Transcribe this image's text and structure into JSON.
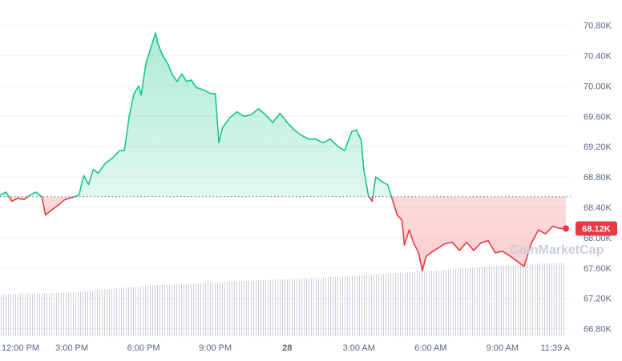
{
  "chart_data": {
    "type": "line",
    "yticks": [
      "70.80K",
      "70.40K",
      "70.00K",
      "69.60K",
      "69.20K",
      "68.80K",
      "68.40K",
      "68.00K",
      "67.60K",
      "67.20K",
      "66.80K"
    ],
    "ytick_values": [
      70800,
      70400,
      70000,
      69600,
      69200,
      68800,
      68400,
      68000,
      67600,
      67200,
      66800
    ],
    "xticks": [
      "12:00 PM",
      "3:00 PM",
      "6:00 PM",
      "9:00 PM",
      "28",
      "3:00 AM",
      "6:00 AM",
      "9:00 AM",
      "11:39 A"
    ],
    "xtick_hours": [
      0,
      3,
      6,
      9,
      12,
      15,
      18,
      21,
      23.65
    ],
    "ylim": [
      66700,
      71050
    ],
    "baseline": 68540,
    "current_price_label": "68.12K",
    "current_price": 68120,
    "watermark": "CoinMarketCap",
    "colors": {
      "up": "#16c784",
      "down": "#ea3943",
      "axis": "#58667e",
      "volume": "#b9bec8"
    },
    "series": [
      {
        "values": [
          [
            0,
            68560
          ],
          [
            0.25,
            68600
          ],
          [
            0.5,
            68480
          ],
          [
            0.75,
            68520
          ],
          [
            1,
            68500
          ],
          [
            1.25,
            68560
          ],
          [
            1.5,
            68600
          ],
          [
            1.75,
            68540
          ],
          [
            1.9,
            68300
          ],
          [
            2.1,
            68350
          ],
          [
            2.4,
            68420
          ],
          [
            2.7,
            68500
          ],
          [
            3.0,
            68530
          ],
          [
            3.3,
            68560
          ],
          [
            3.5,
            68820
          ],
          [
            3.7,
            68700
          ],
          [
            3.9,
            68900
          ],
          [
            4.1,
            68850
          ],
          [
            4.4,
            68980
          ],
          [
            4.7,
            69050
          ],
          [
            5.0,
            69150
          ],
          [
            5.2,
            69150
          ],
          [
            5.4,
            69600
          ],
          [
            5.6,
            69900
          ],
          [
            5.8,
            70000
          ],
          [
            5.9,
            69880
          ],
          [
            6.1,
            70300
          ],
          [
            6.3,
            70500
          ],
          [
            6.5,
            70700
          ],
          [
            6.6,
            70560
          ],
          [
            6.8,
            70400
          ],
          [
            7.0,
            70300
          ],
          [
            7.2,
            70150
          ],
          [
            7.4,
            70060
          ],
          [
            7.6,
            70160
          ],
          [
            7.8,
            70060
          ],
          [
            8.0,
            70080
          ],
          [
            8.2,
            69980
          ],
          [
            8.5,
            69950
          ],
          [
            8.8,
            69900
          ],
          [
            9.0,
            69900
          ],
          [
            9.15,
            69250
          ],
          [
            9.3,
            69450
          ],
          [
            9.6,
            69580
          ],
          [
            9.9,
            69660
          ],
          [
            10.2,
            69600
          ],
          [
            10.5,
            69620
          ],
          [
            10.8,
            69700
          ],
          [
            11.1,
            69620
          ],
          [
            11.4,
            69520
          ],
          [
            11.7,
            69640
          ],
          [
            12.0,
            69520
          ],
          [
            12.3,
            69420
          ],
          [
            12.6,
            69350
          ],
          [
            12.9,
            69300
          ],
          [
            13.2,
            69300
          ],
          [
            13.5,
            69250
          ],
          [
            13.8,
            69300
          ],
          [
            14.1,
            69210
          ],
          [
            14.4,
            69150
          ],
          [
            14.7,
            69400
          ],
          [
            14.9,
            69420
          ],
          [
            15.1,
            69280
          ],
          [
            15.2,
            68900
          ],
          [
            15.4,
            68550
          ],
          [
            15.55,
            68480
          ],
          [
            15.7,
            68800
          ],
          [
            16.0,
            68730
          ],
          [
            16.2,
            68700
          ],
          [
            16.4,
            68500
          ],
          [
            16.6,
            68300
          ],
          [
            16.8,
            68230
          ],
          [
            16.9,
            67900
          ],
          [
            17.1,
            68100
          ],
          [
            17.3,
            67920
          ],
          [
            17.5,
            67800
          ],
          [
            17.65,
            67560
          ],
          [
            17.8,
            67750
          ],
          [
            18.0,
            67800
          ],
          [
            18.3,
            67860
          ],
          [
            18.6,
            67920
          ],
          [
            18.9,
            67940
          ],
          [
            19.2,
            67830
          ],
          [
            19.5,
            67940
          ],
          [
            19.8,
            67830
          ],
          [
            20.1,
            67930
          ],
          [
            20.4,
            67960
          ],
          [
            20.7,
            67800
          ],
          [
            21.0,
            67820
          ],
          [
            21.3,
            67760
          ],
          [
            21.6,
            67690
          ],
          [
            21.9,
            67620
          ],
          [
            22.2,
            67920
          ],
          [
            22.5,
            68100
          ],
          [
            22.8,
            68050
          ],
          [
            23.1,
            68150
          ],
          [
            23.4,
            68120
          ],
          [
            23.65,
            68120
          ]
        ]
      }
    ],
    "volume_level": [
      [
        0,
        0.5
      ],
      [
        3,
        0.52
      ],
      [
        6,
        0.6
      ],
      [
        9,
        0.64
      ],
      [
        12,
        0.68
      ],
      [
        15,
        0.72
      ],
      [
        18,
        0.78
      ],
      [
        21,
        0.84
      ],
      [
        23.65,
        0.88
      ]
    ]
  }
}
